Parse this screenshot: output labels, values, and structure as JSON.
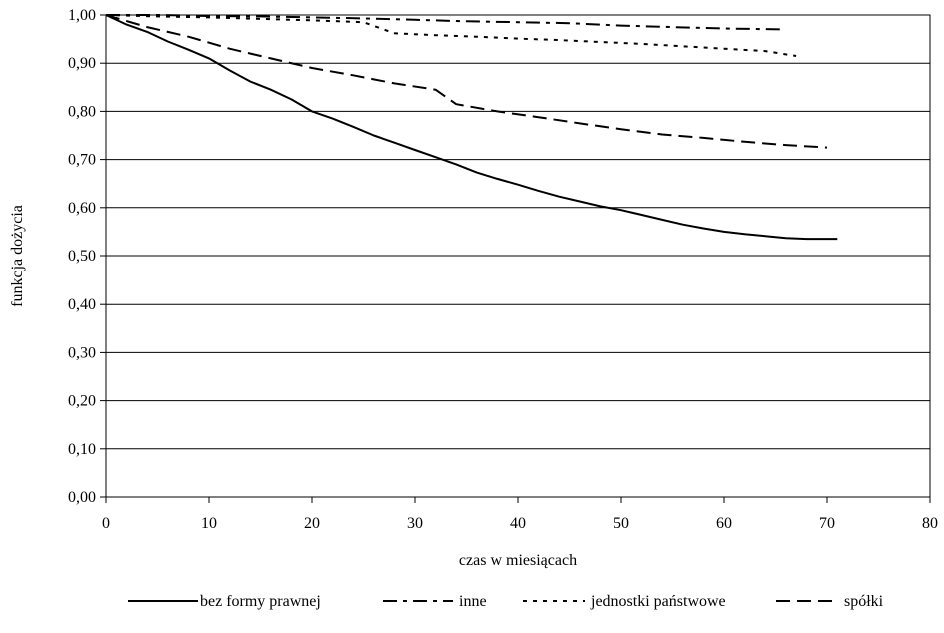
{
  "chart_data": {
    "type": "line",
    "title": "",
    "xlabel": "czas w miesiącach",
    "ylabel": "funkcja dożycia",
    "xlim": [
      0,
      80
    ],
    "ylim": [
      0,
      1
    ],
    "x_ticks": [
      "0",
      "10",
      "20",
      "30",
      "40",
      "50",
      "60",
      "70",
      "80"
    ],
    "y_ticks": [
      "0,00",
      "0,10",
      "0,20",
      "0,30",
      "0,40",
      "0,50",
      "0,60",
      "0,70",
      "0,80",
      "0,90",
      "1,00"
    ],
    "grid": "horizontal",
    "legend_position": "bottom",
    "series": [
      {
        "name": "bez formy prawnej",
        "style": "solid",
        "points": [
          [
            0,
            1.0
          ],
          [
            2,
            0.98
          ],
          [
            4,
            0.965
          ],
          [
            6,
            0.945
          ],
          [
            8,
            0.928
          ],
          [
            10,
            0.91
          ],
          [
            12,
            0.885
          ],
          [
            14,
            0.862
          ],
          [
            16,
            0.845
          ],
          [
            18,
            0.825
          ],
          [
            20,
            0.8
          ],
          [
            22,
            0.785
          ],
          [
            24,
            0.768
          ],
          [
            26,
            0.75
          ],
          [
            28,
            0.735
          ],
          [
            30,
            0.72
          ],
          [
            32,
            0.705
          ],
          [
            34,
            0.69
          ],
          [
            36,
            0.673
          ],
          [
            38,
            0.66
          ],
          [
            40,
            0.648
          ],
          [
            42,
            0.635
          ],
          [
            44,
            0.623
          ],
          [
            46,
            0.613
          ],
          [
            48,
            0.603
          ],
          [
            50,
            0.595
          ],
          [
            52,
            0.585
          ],
          [
            54,
            0.575
          ],
          [
            56,
            0.565
          ],
          [
            58,
            0.557
          ],
          [
            60,
            0.55
          ],
          [
            62,
            0.545
          ],
          [
            64,
            0.541
          ],
          [
            66,
            0.537
          ],
          [
            68,
            0.535
          ],
          [
            71,
            0.535
          ]
        ]
      },
      {
        "name": "inne",
        "style": "dash-dot",
        "points": [
          [
            0,
            1.0
          ],
          [
            5,
            1.0
          ],
          [
            10,
            0.998
          ],
          [
            15,
            0.997
          ],
          [
            20,
            0.995
          ],
          [
            25,
            0.993
          ],
          [
            30,
            0.99
          ],
          [
            35,
            0.987
          ],
          [
            40,
            0.985
          ],
          [
            45,
            0.983
          ],
          [
            50,
            0.978
          ],
          [
            55,
            0.975
          ],
          [
            60,
            0.972
          ],
          [
            66,
            0.97
          ]
        ]
      },
      {
        "name": "jednostki państwowe",
        "style": "dotted",
        "points": [
          [
            0,
            1.0
          ],
          [
            5,
            0.997
          ],
          [
            10,
            0.995
          ],
          [
            15,
            0.992
          ],
          [
            20,
            0.989
          ],
          [
            25,
            0.985
          ],
          [
            28,
            0.962
          ],
          [
            32,
            0.958
          ],
          [
            36,
            0.955
          ],
          [
            40,
            0.951
          ],
          [
            44,
            0.948
          ],
          [
            48,
            0.944
          ],
          [
            52,
            0.94
          ],
          [
            56,
            0.935
          ],
          [
            60,
            0.93
          ],
          [
            64,
            0.925
          ],
          [
            67,
            0.915
          ]
        ]
      },
      {
        "name": "spółki",
        "style": "dashed",
        "points": [
          [
            0,
            1.0
          ],
          [
            4,
            0.975
          ],
          [
            8,
            0.955
          ],
          [
            12,
            0.93
          ],
          [
            16,
            0.91
          ],
          [
            20,
            0.89
          ],
          [
            24,
            0.875
          ],
          [
            28,
            0.858
          ],
          [
            32,
            0.845
          ],
          [
            34,
            0.815
          ],
          [
            38,
            0.8
          ],
          [
            42,
            0.788
          ],
          [
            46,
            0.775
          ],
          [
            50,
            0.763
          ],
          [
            54,
            0.752
          ],
          [
            58,
            0.745
          ],
          [
            62,
            0.737
          ],
          [
            66,
            0.73
          ],
          [
            70,
            0.725
          ]
        ]
      }
    ]
  }
}
